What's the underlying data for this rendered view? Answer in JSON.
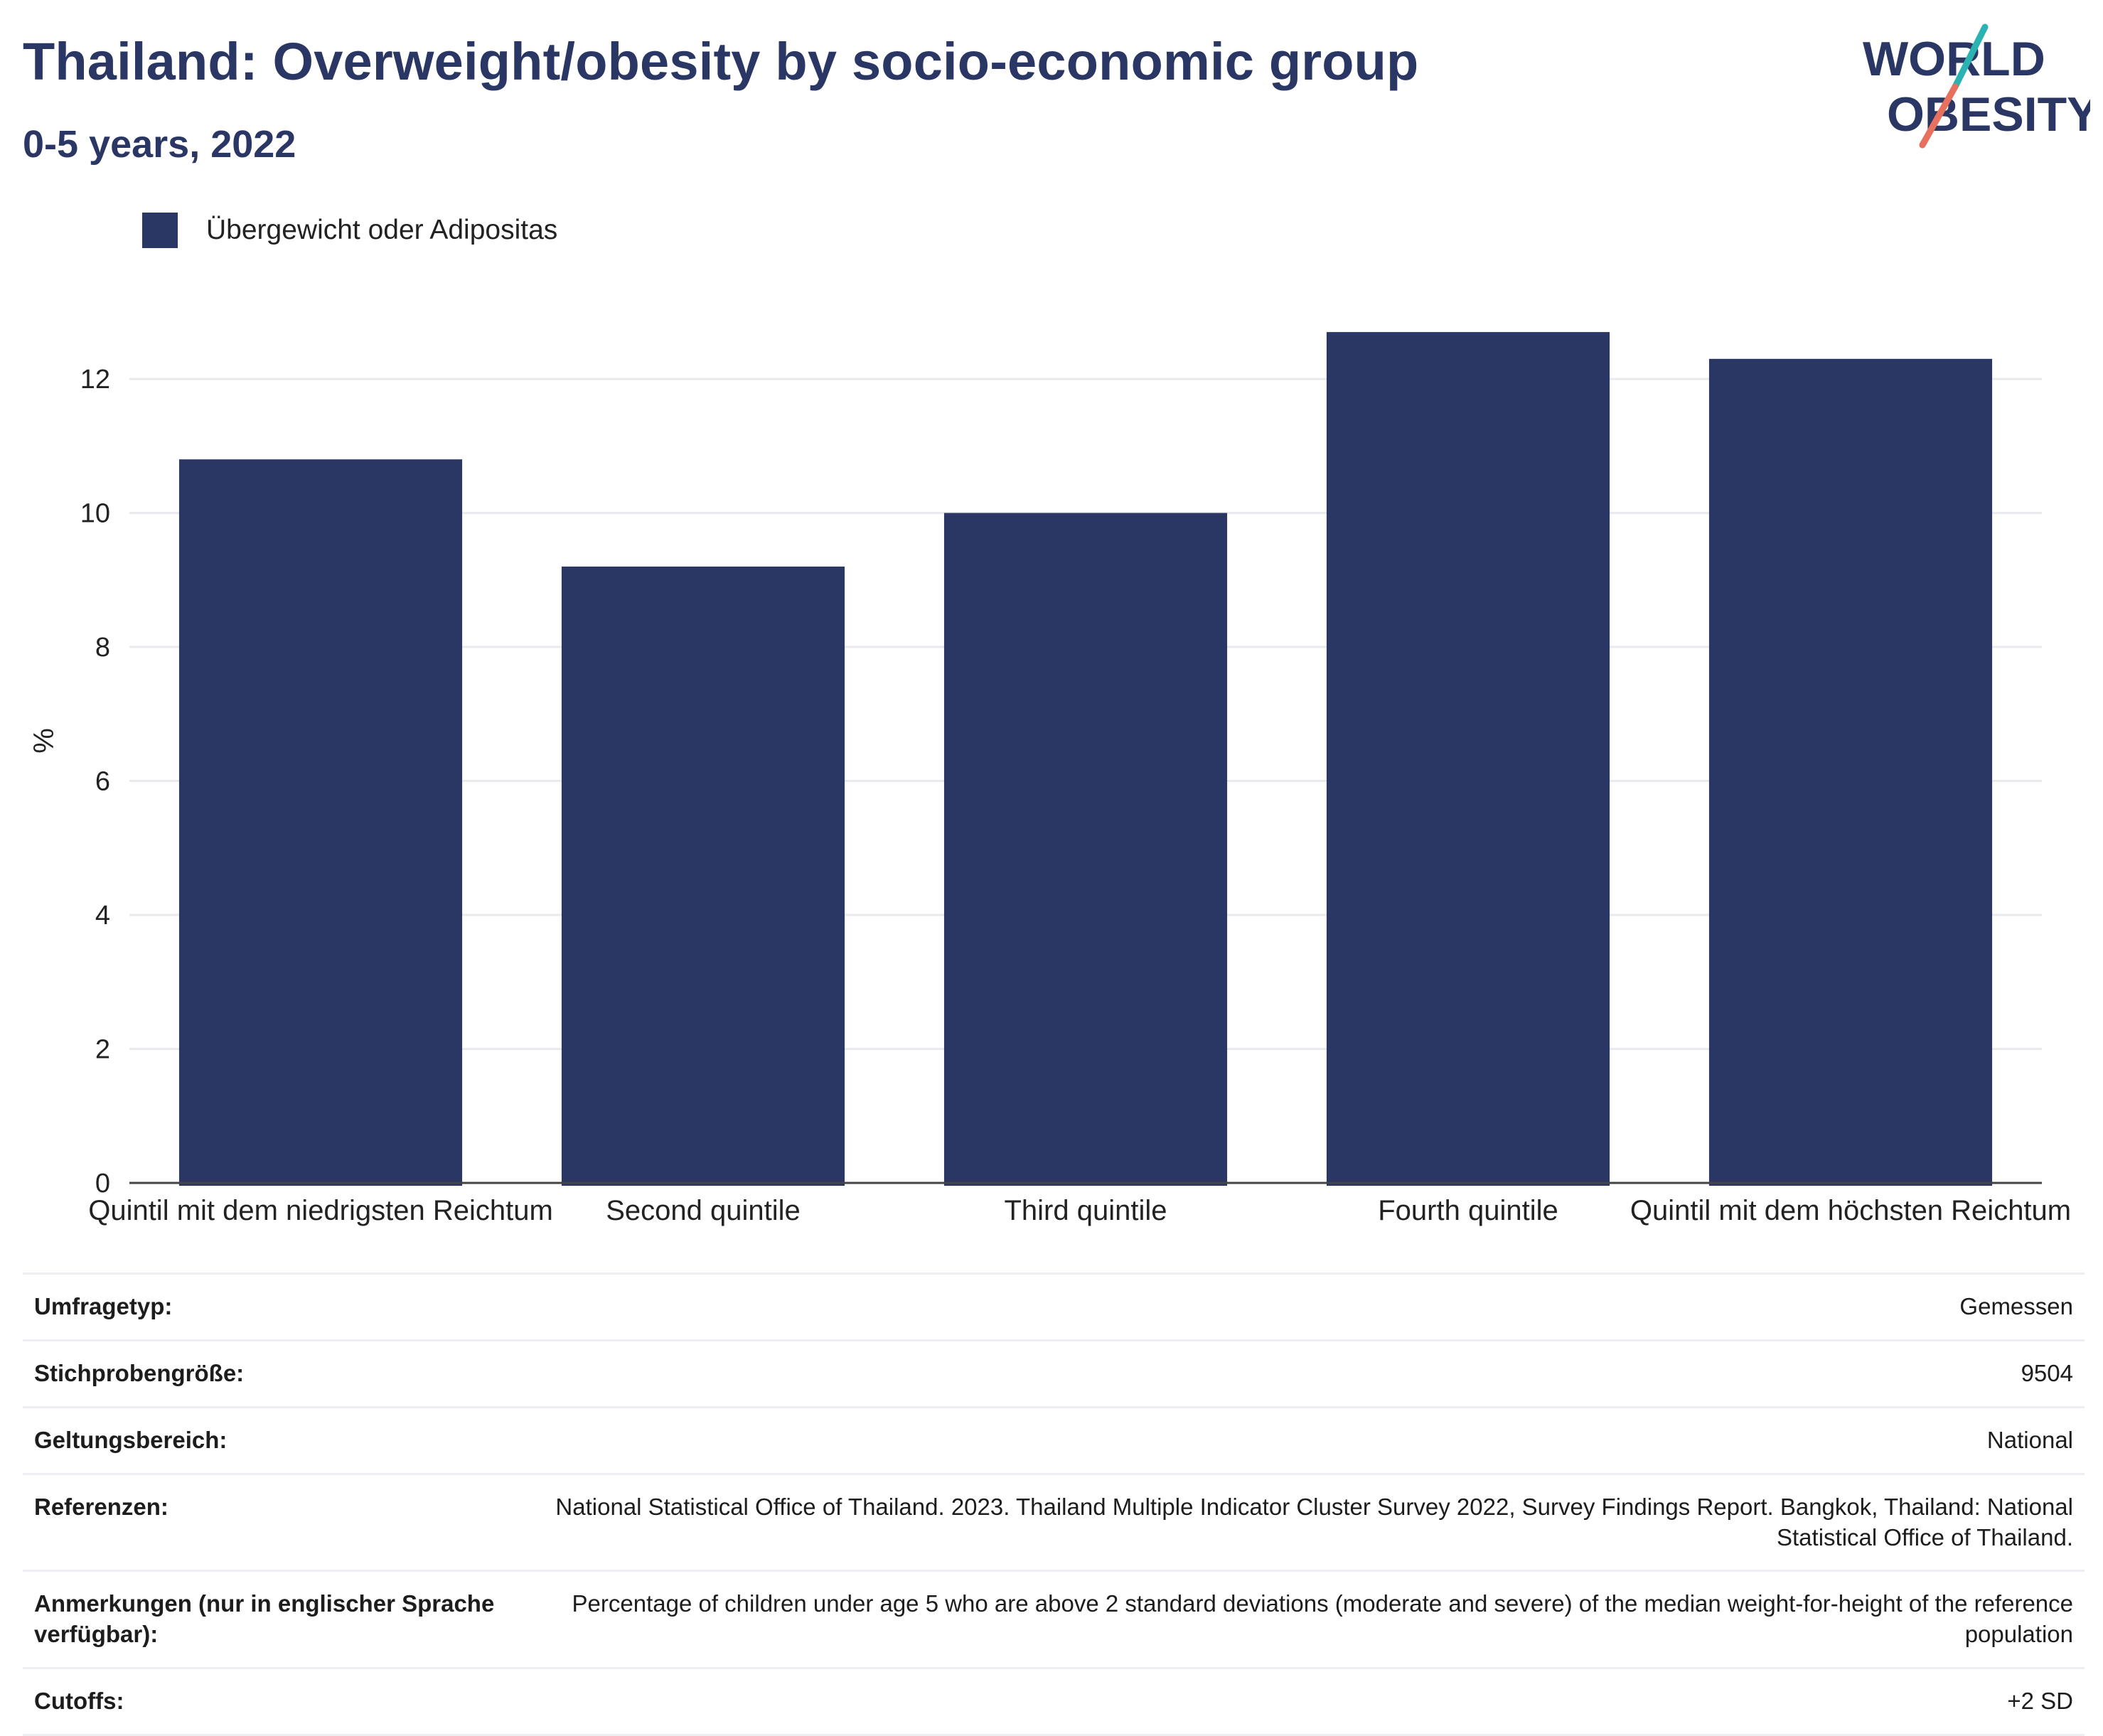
{
  "header": {
    "title": "Thailand: Overweight/obesity by socio-economic group",
    "subtitle": "0-5 years, 2022"
  },
  "logo": {
    "line1": "WORLD",
    "line2": "OBESITY",
    "colors": {
      "navy": "#2a3664",
      "teal": "#2ab3b1",
      "coral": "#e8705f"
    }
  },
  "legend": {
    "label": "Übergewicht oder Adipositas",
    "color": "#2a3664"
  },
  "chart_data": {
    "type": "bar",
    "title": "Thailand: Overweight/obesity by socio-economic group",
    "subtitle": "0-5 years, 2022",
    "categories": [
      "Quintil mit dem niedrigsten Reichtum",
      "Second quintile",
      "Third quintile",
      "Fourth quintile",
      "Quintil mit dem höchsten Reichtum"
    ],
    "series": [
      {
        "name": "Übergewicht oder Adipositas",
        "values": [
          10.8,
          9.2,
          10.0,
          12.7,
          12.3
        ],
        "color": "#2a3664"
      }
    ],
    "xlabel": "",
    "ylabel": "%",
    "ylim": [
      0,
      13.2
    ],
    "yticks": [
      0,
      2,
      4,
      6,
      8,
      10,
      12
    ],
    "grid": true,
    "legend_position": "top-left"
  },
  "info": [
    {
      "key": "Umfragetyp:",
      "value": "Gemessen"
    },
    {
      "key": "Stichprobengröße:",
      "value": "9504"
    },
    {
      "key": "Geltungsbereich:",
      "value": "National"
    },
    {
      "key": "Referenzen:",
      "value": "National Statistical Office of Thailand. 2023. Thailand Multiple Indicator Cluster Survey 2022, Survey Findings Report. Bangkok, Thailand: National Statistical Office of Thailand."
    },
    {
      "key": "Anmerkungen (nur in englischer Sprache verfügbar):",
      "value": "Percentage of children under age 5 who are above 2 standard deviations (moderate and severe) of the median weight-for-height of the reference population"
    },
    {
      "key": "Cutoffs:",
      "value": "+2 SD"
    }
  ]
}
